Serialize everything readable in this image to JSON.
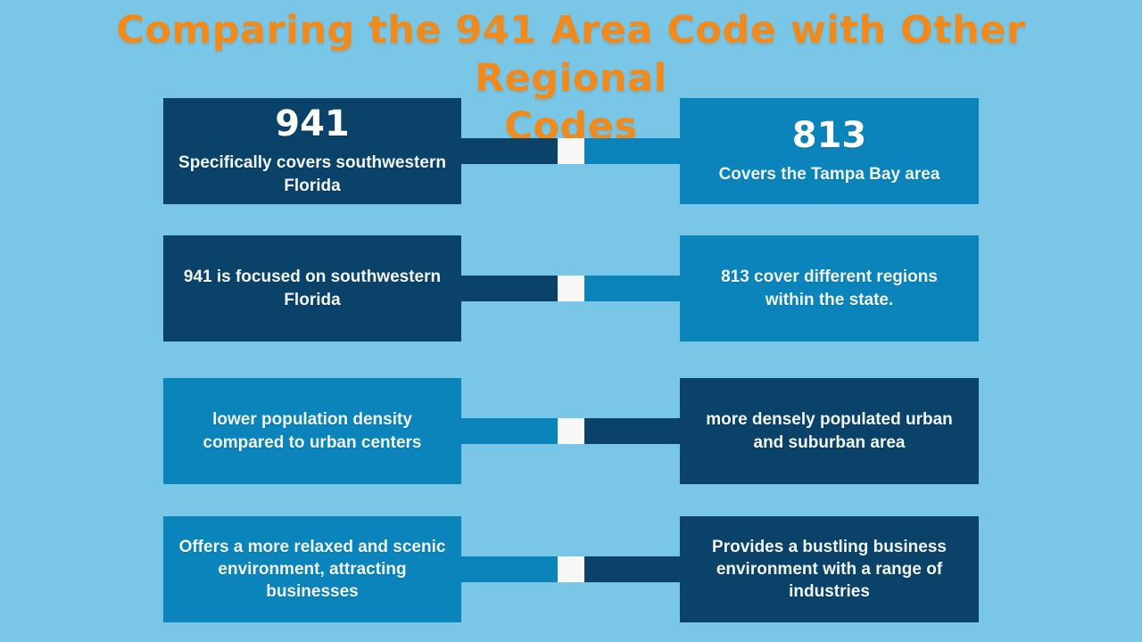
{
  "title": {
    "lines": [
      "Comparing the 941 Area Code with Other Regional",
      "Codes"
    ]
  },
  "colors": {
    "background": "#79c6e6",
    "dark_navy": "#0b4269",
    "medium_blue": "#0a84bb",
    "connector_square": "#f7f8f5",
    "title_orange": "#f28a1b",
    "box_text": "#f0f6f4"
  },
  "rows": [
    {
      "left": {
        "heading": "941",
        "text": "Specifically covers southwestern Florida",
        "color_variant": "dark"
      },
      "right": {
        "heading": "813",
        "text": "Covers the Tampa Bay area",
        "color_variant": "medium"
      }
    },
    {
      "left": {
        "text": "941 is focused on southwestern Florida",
        "color_variant": "dark"
      },
      "right": {
        "text": "813 cover different regions within the state.",
        "color_variant": "medium"
      }
    },
    {
      "left": {
        "text": "lower population density compared to urban centers",
        "color_variant": "medium"
      },
      "right": {
        "text": "more densely populated urban and suburban area",
        "color_variant": "dark"
      }
    },
    {
      "left": {
        "text": "Offers a more relaxed and scenic environment, attracting businesses",
        "color_variant": "medium"
      },
      "right": {
        "text": "Provides a bustling business environment with a range of industries",
        "color_variant": "dark"
      }
    }
  ]
}
